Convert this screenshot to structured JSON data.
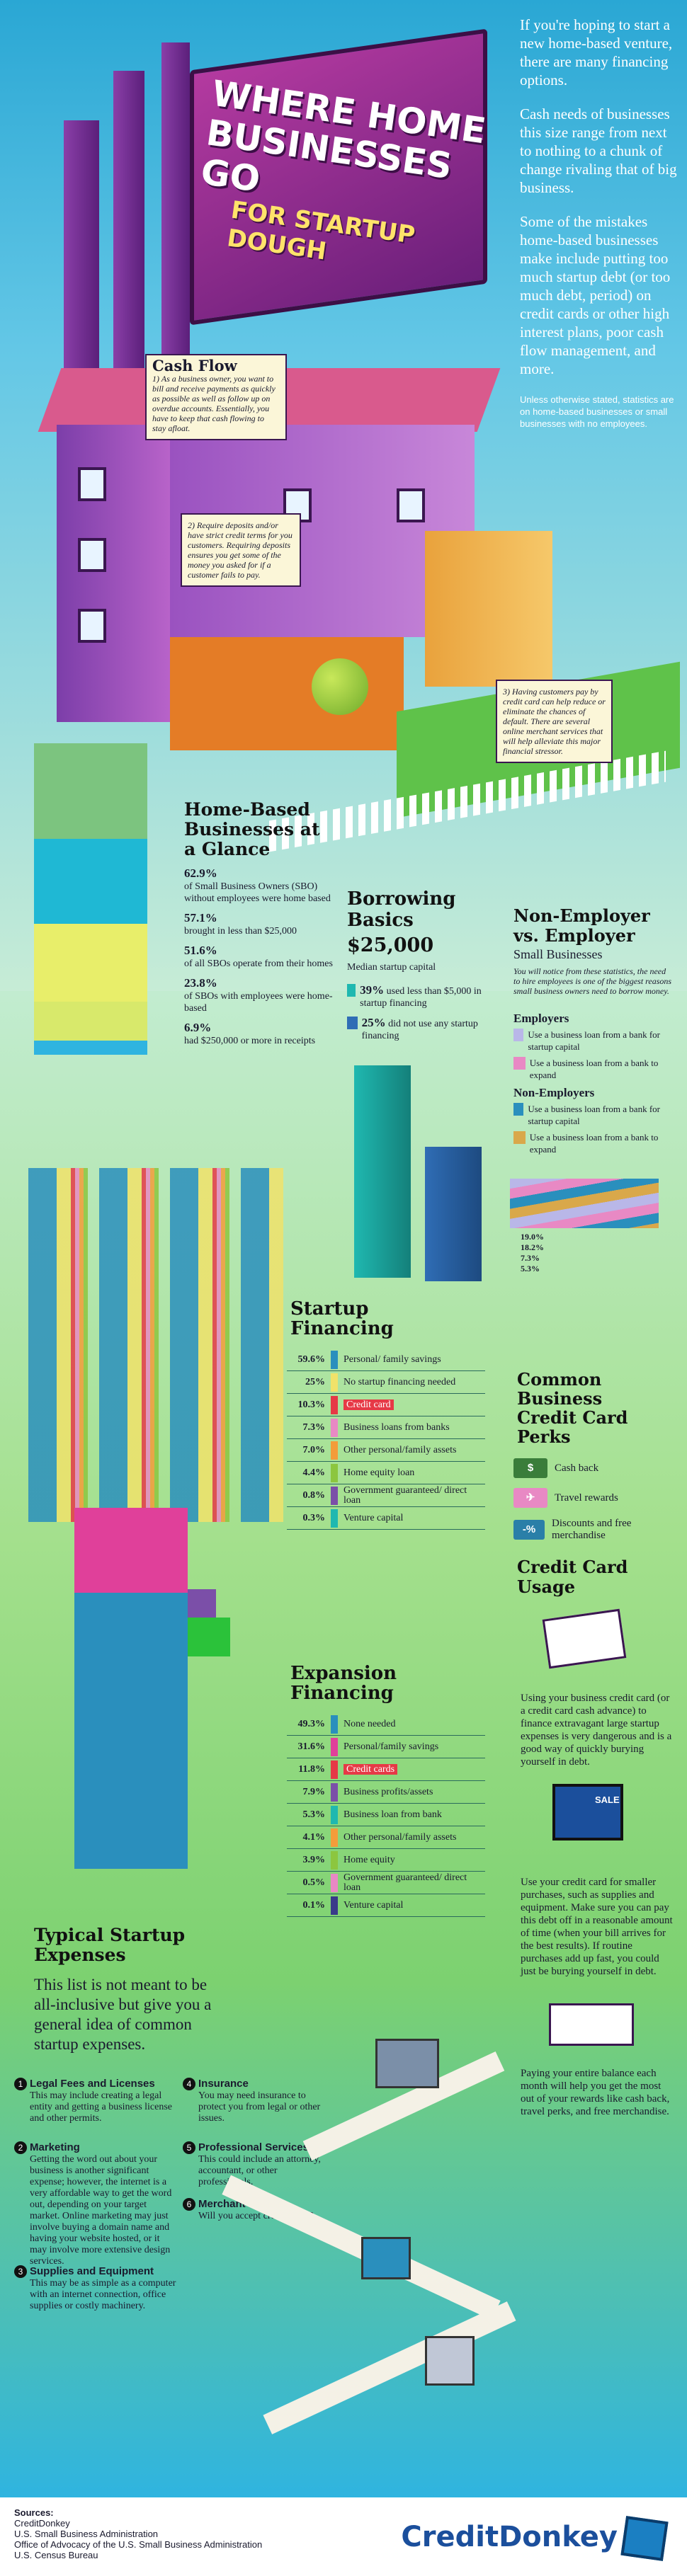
{
  "hero": {
    "title": "Where Home Businesses Go",
    "subtitle": "For Startup Dough"
  },
  "intro": {
    "p1": "If you're hoping to start a new home-based venture, there are many financing options.",
    "p2": "Cash needs of businesses this size range from next to nothing to a chunk of change rivaling that of big business.",
    "p3": "Some of the mistakes home-based businesses make include putting too much startup debt (or too much debt, period) on credit cards or other high interest plans, poor cash flow management, and more.",
    "note": "Unless otherwise stated, statistics are on home-based businesses or small businesses with no employees."
  },
  "cashflow": {
    "title": "Cash Flow",
    "text": "1) As a business owner, you want to bill and receive payments as quickly as possible as well as follow up on overdue accounts. Essentially, you have to keep that cash flowing to stay afloat."
  },
  "deposits": {
    "text": "2) Require deposits and/or have strict credit terms for you customers. Requiring deposits ensures you get some of the money you asked for if a customer fails to pay."
  },
  "customers": {
    "text": "3) Having customers pay by credit card can help reduce or eliminate the chances of default. There are several online merchant services that will help alleviate this major financial stressor."
  },
  "glance": {
    "title": "Home-Based Businesses at a Glance",
    "items": [
      {
        "value": "62.9%",
        "text": "of Small Business Owners (SBO) without employees were home based"
      },
      {
        "value": "57.1%",
        "text": "brought in less than $25,000"
      },
      {
        "value": "51.6%",
        "text": "of all SBOs operate from their homes"
      },
      {
        "value": "23.8%",
        "text": "of SBOs with employees were home-based"
      },
      {
        "value": "6.9%",
        "text": "had $250,000 or more in receipts"
      }
    ]
  },
  "borrowing": {
    "title": "Borrowing Basics",
    "median": "$25,000",
    "median_label": "Median startup capital",
    "items": [
      {
        "value": "39%",
        "text": "used less than $5,000 in startup financing",
        "color": "#1fb8b0"
      },
      {
        "value": "25%",
        "text": "did not use any startup financing",
        "color": "#2f6db5"
      }
    ]
  },
  "employer": {
    "title": "Non-Employer vs. Employer",
    "subtitle": "Small Businesses",
    "note": "You will notice from these statistics, the need to hire employees is one of the biggest reasons small business owners need to borrow money.",
    "employers_label": "Employers",
    "employers": [
      {
        "text": "Use a business loan from a bank for startup capital",
        "color": "#b9b7e8"
      },
      {
        "text": "Use a business loan from a bank to expand",
        "color": "#e889c4"
      }
    ],
    "nonemployers_label": "Non-Employers",
    "nonemployers": [
      {
        "text": "Use a business loan from a bank for startup capital",
        "color": "#2a8fbd"
      },
      {
        "text": "Use a business loan from a bank to expand",
        "color": "#d9a84a"
      }
    ],
    "values": [
      "19.0%",
      "18.2%",
      "7.3%",
      "5.3%"
    ]
  },
  "startup": {
    "title": "Startup Financing",
    "rows": [
      {
        "pct": "59.6%",
        "label": "Personal/ family savings",
        "color": "#2a8fbd"
      },
      {
        "pct": "25%",
        "label": "No startup financing needed",
        "color": "#f0e26a"
      },
      {
        "pct": "10.3%",
        "label": "Credit card",
        "color": "#e63946",
        "hi": true
      },
      {
        "pct": "7.3%",
        "label": "Business loans from banks",
        "color": "#e889c4"
      },
      {
        "pct": "7.0%",
        "label": "Other personal/family assets",
        "color": "#f39c3a"
      },
      {
        "pct": "4.4%",
        "label": "Home equity loan",
        "color": "#8cc63f"
      },
      {
        "pct": "0.8%",
        "label": "Government guaranteed/ direct loan",
        "color": "#7b4fa8"
      },
      {
        "pct": "0.3%",
        "label": "Venture capital",
        "color": "#1fb8b0"
      }
    ]
  },
  "perks": {
    "title": "Common Business Credit Card Perks",
    "items": [
      {
        "icon": "cash",
        "label": "Cash back"
      },
      {
        "icon": "plane",
        "label": "Travel rewards"
      },
      {
        "icon": "-%",
        "label": "Discounts and free merchandise"
      }
    ]
  },
  "usage": {
    "title": "Credit Card Usage",
    "p1": "Using your business credit card (or a credit card cash advance) to finance extravagant large startup expenses is very dangerous and is a good way of quickly burying yourself in debt.",
    "p2": "Use your credit card for smaller purchases, such as supplies and equipment. Make sure you can pay this debt off in a reasonable amount of time (when your bill arrives for the best results). If routine purchases add up fast, you could just be burying yourself in debt.",
    "p3": "Paying your entire balance each month will help you get the most out of your rewards like cash back, travel perks, and free merchandise.",
    "sale": "SALE"
  },
  "expansion": {
    "title": "Expansion Financing",
    "rows": [
      {
        "pct": "49.3%",
        "label": "None needed",
        "color": "#2a8fbd"
      },
      {
        "pct": "31.6%",
        "label": "Personal/family savings",
        "color": "#e0409a"
      },
      {
        "pct": "11.8%",
        "label": "Credit cards",
        "color": "#e63946",
        "hi": true
      },
      {
        "pct": "7.9%",
        "label": "Business profits/assets",
        "color": "#7b4fa8"
      },
      {
        "pct": "5.3%",
        "label": "Business loan from bank",
        "color": "#1fb8b0"
      },
      {
        "pct": "4.1%",
        "label": "Other personal/family assets",
        "color": "#f39c3a"
      },
      {
        "pct": "3.9%",
        "label": "Home equity",
        "color": "#8cc63f"
      },
      {
        "pct": "0.5%",
        "label": "Government guaranteed/ direct loan",
        "color": "#e889c4"
      },
      {
        "pct": "0.1%",
        "label": "Venture capital",
        "color": "#3a3a8a"
      }
    ]
  },
  "expenses": {
    "title": "Typical Startup Expenses",
    "lead": "This list is not meant to be all-inclusive but give you a general idea of common startup expenses.",
    "items": [
      {
        "num": "1",
        "title": "Legal Fees and Licenses",
        "text": "This may include creating a legal entity and getting a business license and other permits."
      },
      {
        "num": "2",
        "title": "Marketing",
        "text": "Getting the word out about your business is another significant expense; however, the internet is a very affordable way to get the word out, depending on your target market. Online marketing may just involve buying a domain name and having your website hosted, or it may involve more extensive design services."
      },
      {
        "num": "3",
        "title": "Supplies and Equipment",
        "text": "This may be as simple as a computer with an internet connection, office supplies or costly machinery."
      },
      {
        "num": "4",
        "title": "Insurance",
        "text": "You may need insurance to protect you from legal or other issues."
      },
      {
        "num": "5",
        "title": "Professional Services",
        "text": "This could include an attorney, accountant, or other professionals."
      },
      {
        "num": "6",
        "title": "Merchant Service",
        "text": "Will you accept credit cards?"
      }
    ]
  },
  "sources": {
    "title": "Sources:",
    "items": [
      "CreditDonkey",
      "U.S. Small Business Administration",
      "Office of Advocacy of the U.S. Small Business Administration",
      "U.S. Census Bureau"
    ]
  },
  "brand": "CreditDonkey"
}
